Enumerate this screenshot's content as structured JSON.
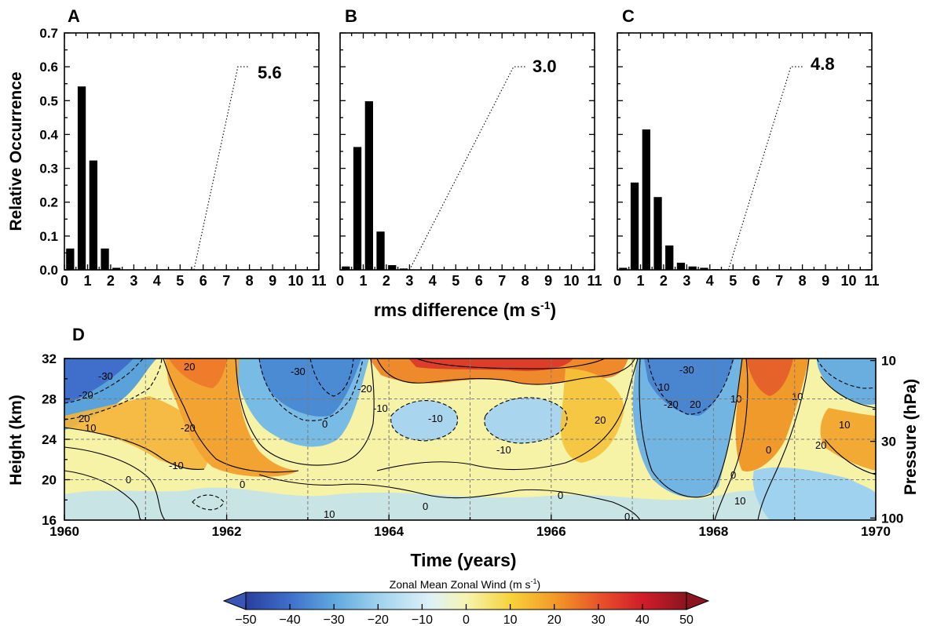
{
  "chart_data": [
    {
      "panel": "A",
      "type": "bar",
      "ylabel": "Relative Occurrence",
      "xticks": [
        0,
        1,
        2,
        3,
        4,
        5,
        6,
        7,
        8,
        9,
        10,
        11
      ],
      "yticks": [
        "0.0",
        "0.1",
        "0.2",
        "0.3",
        "0.4",
        "0.5",
        "0.6",
        "0.7"
      ],
      "xlim": [
        0,
        11
      ],
      "ylim": [
        0,
        0.7
      ],
      "bins": [
        0.25,
        0.75,
        1.25,
        1.75,
        2.25,
        2.75
      ],
      "values": [
        0.063,
        0.542,
        0.323,
        0.063,
        0.006,
        0.001
      ],
      "dotted_line": {
        "from": [
          5.6,
          0.0
        ],
        "to": [
          7.5,
          0.6
        ],
        "end": [
          8.0,
          0.6
        ]
      },
      "annotation": "5.6"
    },
    {
      "panel": "B",
      "type": "bar",
      "xticks": [
        0,
        1,
        2,
        3,
        4,
        5,
        6,
        7,
        8,
        9,
        10,
        11
      ],
      "xlim": [
        0,
        11
      ],
      "ylim": [
        0,
        0.7
      ],
      "bins": [
        0.25,
        0.75,
        1.25,
        1.75,
        2.25,
        2.75
      ],
      "values": [
        0.01,
        0.363,
        0.498,
        0.113,
        0.014,
        0.004
      ],
      "dotted_line": {
        "from": [
          3.0,
          0.0
        ],
        "to": [
          7.5,
          0.6
        ],
        "end": [
          8.0,
          0.6
        ]
      },
      "annotation": "3.0"
    },
    {
      "panel": "C",
      "type": "bar",
      "xticks": [
        0,
        1,
        2,
        3,
        4,
        5,
        6,
        7,
        8,
        9,
        10,
        11
      ],
      "xlim": [
        0,
        11
      ],
      "ylim": [
        0,
        0.7
      ],
      "bins": [
        0.25,
        0.75,
        1.25,
        1.75,
        2.25,
        2.75,
        3.25,
        3.75,
        4.25
      ],
      "values": [
        0.006,
        0.258,
        0.415,
        0.215,
        0.072,
        0.021,
        0.01,
        0.006,
        0.002
      ],
      "dotted_line": {
        "from": [
          4.8,
          0.0
        ],
        "to": [
          7.5,
          0.6
        ],
        "end": [
          8.0,
          0.6
        ]
      },
      "annotation": "4.8"
    },
    {
      "panel": "D",
      "type": "heatmap",
      "xlabel": "Time (years)",
      "ylabel": "Height (km)",
      "ylabel_right": "Pressure (hPa)",
      "xlim": [
        1960,
        1970
      ],
      "ylim": [
        16,
        32
      ],
      "xticks": [
        "1960",
        "1962",
        "1964",
        "1966",
        "1968",
        "1970"
      ],
      "yticks": [
        "16",
        "20",
        "24",
        "28",
        "32"
      ],
      "pressure_ticks": [
        {
          "label": "10",
          "height": 31.8
        },
        {
          "label": "30",
          "height": 23.8
        },
        {
          "label": "100",
          "height": 16.2
        }
      ],
      "colorbar": {
        "title": "Zonal Mean Zonal Wind (m s",
        "title_sup": "-1",
        "title_end": ")",
        "ticks": [
          "−50",
          "−40",
          "−30",
          "−20",
          "−10",
          "0",
          "10",
          "20",
          "30",
          "40",
          "50"
        ],
        "range": [
          -50,
          50
        ]
      },
      "contour_labels": [
        "-30",
        "20",
        "-20",
        "20",
        "-30",
        "-10",
        "0",
        "-20",
        "-20",
        "-10",
        "-10",
        "10",
        "0",
        "0",
        "10",
        "0",
        "-10",
        "0",
        "20",
        "20",
        "10",
        "10",
        "0",
        "-20",
        "-30",
        "10",
        "20",
        "0",
        "10",
        "0",
        "10"
      ]
    }
  ],
  "panel_labels": {
    "a": "A",
    "b": "B",
    "c": "C",
    "d": "D"
  },
  "annotations": {
    "a": "5.6",
    "b": "3.0",
    "c": "4.8"
  },
  "labels": {
    "top_ylabel": "Relative Occurrence",
    "top_xlabel": "rms difference (m s",
    "top_xlabel_sup": "-1",
    "top_xlabel_end": ")",
    "d_ylabel": "Height (km)",
    "d_ylabel_right": "Pressure (hPa)",
    "d_xlabel": "Time (years)"
  },
  "colors": {
    "bar": "#000000",
    "colormap": [
      "#2a3e9c",
      "#3f6fcb",
      "#5fa8de",
      "#9fd2ee",
      "#dff1f7",
      "#f6f4b0",
      "#f7d33a",
      "#f49a28",
      "#e8552a",
      "#d11c2a",
      "#8a1520"
    ]
  }
}
